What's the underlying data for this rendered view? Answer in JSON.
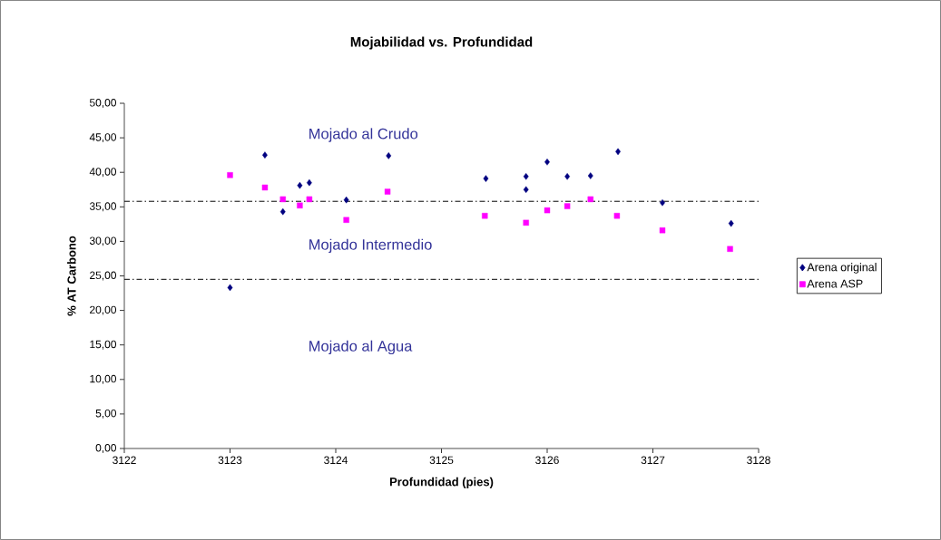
{
  "chart_data": {
    "type": "scatter",
    "title": "Mojabilidad vs. Profundidad",
    "xlabel": "Profundidad (pies)",
    "ylabel": "% AT Carbono",
    "xlim": [
      3122,
      3128
    ],
    "xticks": [
      3122,
      3123,
      3124,
      3125,
      3126,
      3127,
      3128
    ],
    "ylim": [
      0,
      50
    ],
    "yticks": [
      {
        "value": 0,
        "label": "0,00"
      },
      {
        "value": 5,
        "label": "5,00"
      },
      {
        "value": 10,
        "label": "10,00"
      },
      {
        "value": 15,
        "label": "15,00"
      },
      {
        "value": 20,
        "label": "20,00"
      },
      {
        "value": 25,
        "label": "25,00"
      },
      {
        "value": 30,
        "label": "30,00"
      },
      {
        "value": 35,
        "label": "35,00"
      },
      {
        "value": 40,
        "label": "40,00"
      },
      {
        "value": 45,
        "label": "45,00"
      },
      {
        "value": 50,
        "label": "50,00"
      }
    ],
    "grid": false,
    "legend": "right",
    "series": [
      {
        "name": "Arena original",
        "color": "#000080",
        "marker": "diamond",
        "x": [
          3123.0,
          3123.33,
          3123.5,
          3123.66,
          3123.75,
          3124.1,
          3124.5,
          3125.42,
          3125.8,
          3125.8,
          3126.0,
          3126.19,
          3126.41,
          3126.67,
          3127.09,
          3127.74
        ],
        "values": [
          23.3,
          42.5,
          34.3,
          38.1,
          38.5,
          36.0,
          42.4,
          39.1,
          39.4,
          37.5,
          41.5,
          39.4,
          39.5,
          43.0,
          35.6,
          32.6
        ]
      },
      {
        "name": "Arena ASP",
        "color": "#ff00ff",
        "marker": "square",
        "x": [
          3123.0,
          3123.33,
          3123.5,
          3123.66,
          3123.75,
          3124.1,
          3124.49,
          3125.41,
          3125.8,
          3126.0,
          3126.19,
          3126.41,
          3126.66,
          3127.09,
          3127.73
        ],
        "values": [
          39.6,
          37.8,
          36.1,
          35.2,
          36.1,
          33.1,
          37.2,
          33.7,
          32.7,
          34.5,
          35.1,
          36.1,
          33.7,
          31.6,
          28.9
        ]
      }
    ],
    "ref_lines": [
      {
        "axis": "y",
        "value": 35.8,
        "color": "#000000",
        "line_style": "dashdot"
      },
      {
        "axis": "y",
        "value": 24.5,
        "color": "#000000",
        "line_style": "dashdot"
      }
    ],
    "annotations": [
      "Mojado al Crudo",
      "Mojado Intermedio",
      "Mojado al Agua"
    ]
  }
}
